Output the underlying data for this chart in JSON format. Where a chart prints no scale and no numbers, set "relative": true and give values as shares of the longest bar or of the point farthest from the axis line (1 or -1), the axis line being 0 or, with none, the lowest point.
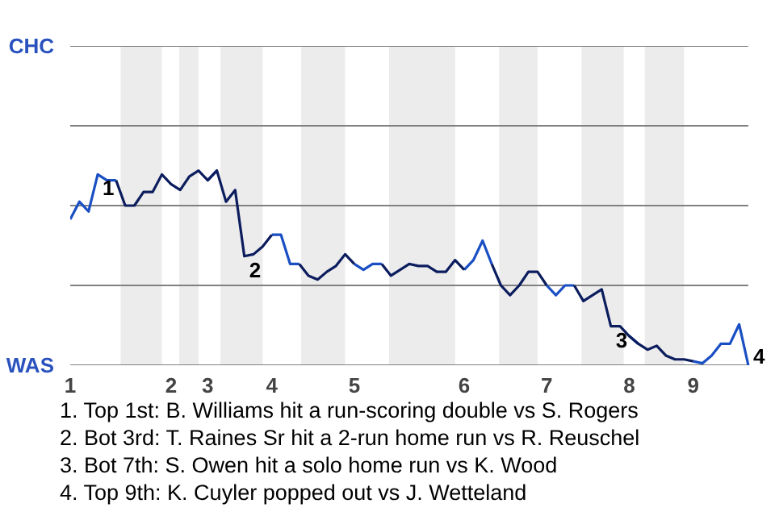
{
  "chart_data": {
    "type": "line",
    "relative": true,
    "categories": [
      "1",
      null,
      null,
      null,
      null,
      null,
      null,
      null,
      null,
      null,
      null,
      "2",
      null,
      null,
      null,
      "3",
      null,
      null,
      null,
      null,
      null,
      null,
      "4",
      null,
      null,
      null,
      null,
      null,
      null,
      null,
      null,
      "5",
      null,
      null,
      null,
      null,
      null,
      null,
      null,
      null,
      null,
      null,
      null,
      "6",
      null,
      null,
      null,
      null,
      null,
      null,
      null,
      null,
      "7",
      null,
      null,
      null,
      null,
      null,
      null,
      null,
      null,
      "8",
      null,
      null,
      null,
      null,
      null,
      null,
      "9",
      null,
      null,
      null,
      null,
      null,
      null
    ],
    "series": [
      {
        "color": "#1a4fc4",
        "values": [
          0.75,
          0.84,
          0.79,
          0.98,
          0.95,
          0.95,
          null,
          null,
          null,
          null,
          null,
          null,
          null,
          null,
          null,
          0.95,
          1,
          null,
          null,
          null,
          null,
          null,
          0.67,
          0.67,
          0.52,
          0.52,
          null,
          null,
          null,
          null,
          null,
          0.52,
          0.49,
          0.52,
          0.52,
          null,
          null,
          null,
          null,
          null,
          null,
          null,
          null,
          0.49,
          0.54,
          0.64,
          0.52,
          null,
          null,
          null,
          null,
          null,
          0.41,
          0.36,
          0.41,
          0.41,
          null,
          null,
          null,
          null,
          null,
          0.15,
          0.11,
          null,
          null,
          null,
          null,
          null,
          0.02,
          0.01,
          0.05,
          0.11,
          0.11,
          0.21,
          0
        ]
      },
      {
        "color": "#0c1d5e",
        "values": [
          null,
          null,
          null,
          null,
          null,
          0.95,
          0.82,
          0.82,
          0.89,
          0.89,
          0.98,
          0.93,
          0.9,
          0.97,
          1,
          0.95,
          1,
          0.84,
          0.9,
          0.56,
          0.57,
          0.61,
          0.67,
          null,
          null,
          0.52,
          0.46,
          0.44,
          0.48,
          0.51,
          0.57,
          0.52,
          null,
          null,
          0.52,
          0.46,
          0.49,
          0.52,
          0.51,
          0.51,
          0.48,
          0.48,
          0.54,
          0.49,
          null,
          null,
          0.52,
          0.41,
          0.36,
          0.41,
          0.48,
          0.48,
          0.41,
          null,
          null,
          0.41,
          0.33,
          0.36,
          0.39,
          0.2,
          0.2,
          0.15,
          0.11,
          0.08,
          0.1,
          0.05,
          0.03,
          0.03,
          0.02,
          null,
          null,
          null,
          null,
          null,
          null
        ]
      }
    ],
    "ref_lines": [
      {
        "axis": "y",
        "value": 0.41,
        "color": "#808080"
      },
      {
        "axis": "y",
        "value": 0.82,
        "color": "#808080"
      },
      {
        "axis": "y",
        "value": 1.23,
        "color": "#808080"
      }
    ],
    "line_style": "solid",
    "annotations": [
      "CHC",
      "WAS",
      {
        "text": "1",
        "y": 0.98
      },
      {
        "text": "2",
        "y": 0.56
      },
      {
        "text": "3",
        "y": 0.2
      },
      "4",
      "1. Top 1st: B. Williams hit a run-scoring double vs S. Rogers",
      "2. Bot 3rd: T. Raines Sr hit a 2-run home run vs R. Reuschel",
      "3. Bot 7th: S. Owen hit a solo home run vs K. Wood",
      "4. Top 9th: K. Cuyler popped out vs J. Wetteland"
    ]
  }
}
